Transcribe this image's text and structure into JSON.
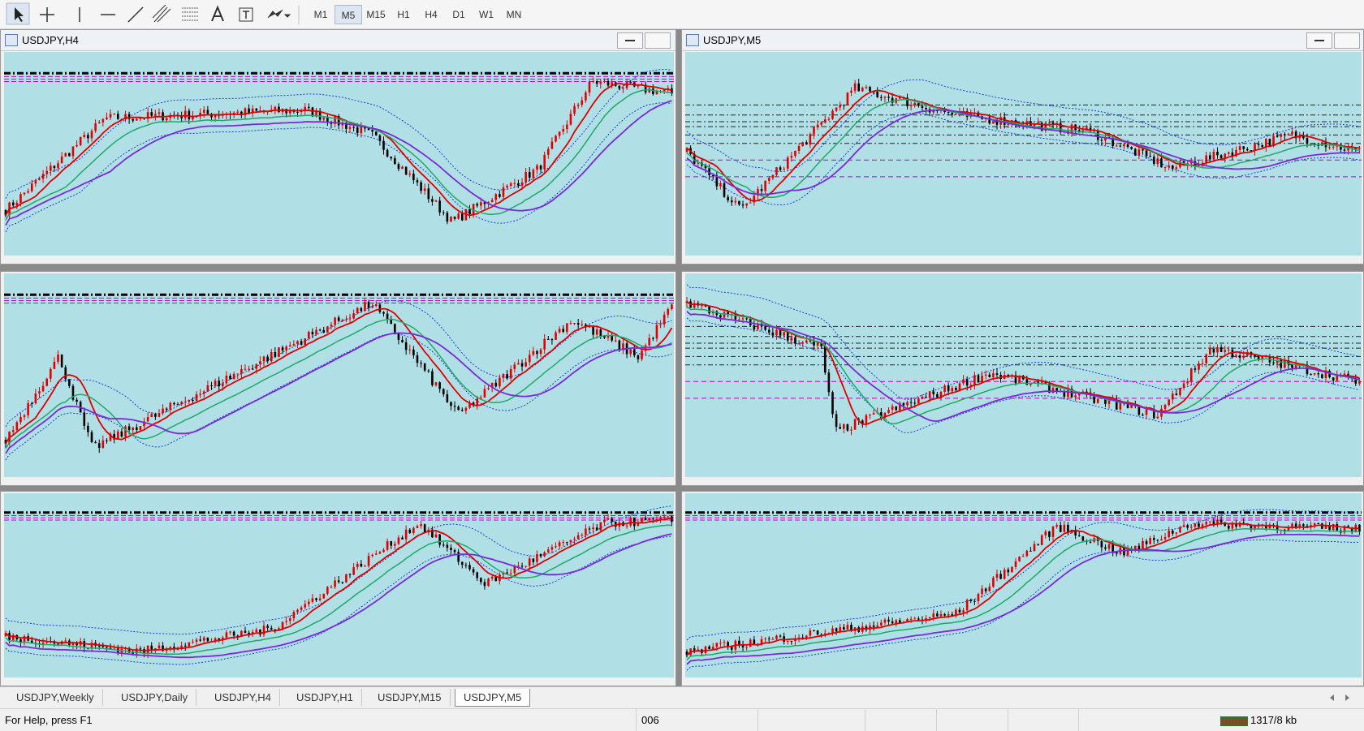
{
  "toolbar": {
    "timeframes": [
      "M1",
      "M5",
      "M15",
      "H1",
      "H4",
      "D1",
      "W1",
      "MN"
    ]
  },
  "windows": [
    {
      "title": "USDJPY,H4"
    },
    {
      "title": "USDJPY,M5"
    }
  ],
  "tabs": [
    "USDJPY,Weekly",
    "USDJPY,Daily",
    "USDJPY,H4",
    "USDJPY,H1",
    "USDJPY,M15",
    "USDJPY,M5"
  ],
  "status": {
    "help": "For Help, press F1",
    "profile": "006",
    "traffic": "1317/8 kb"
  }
}
